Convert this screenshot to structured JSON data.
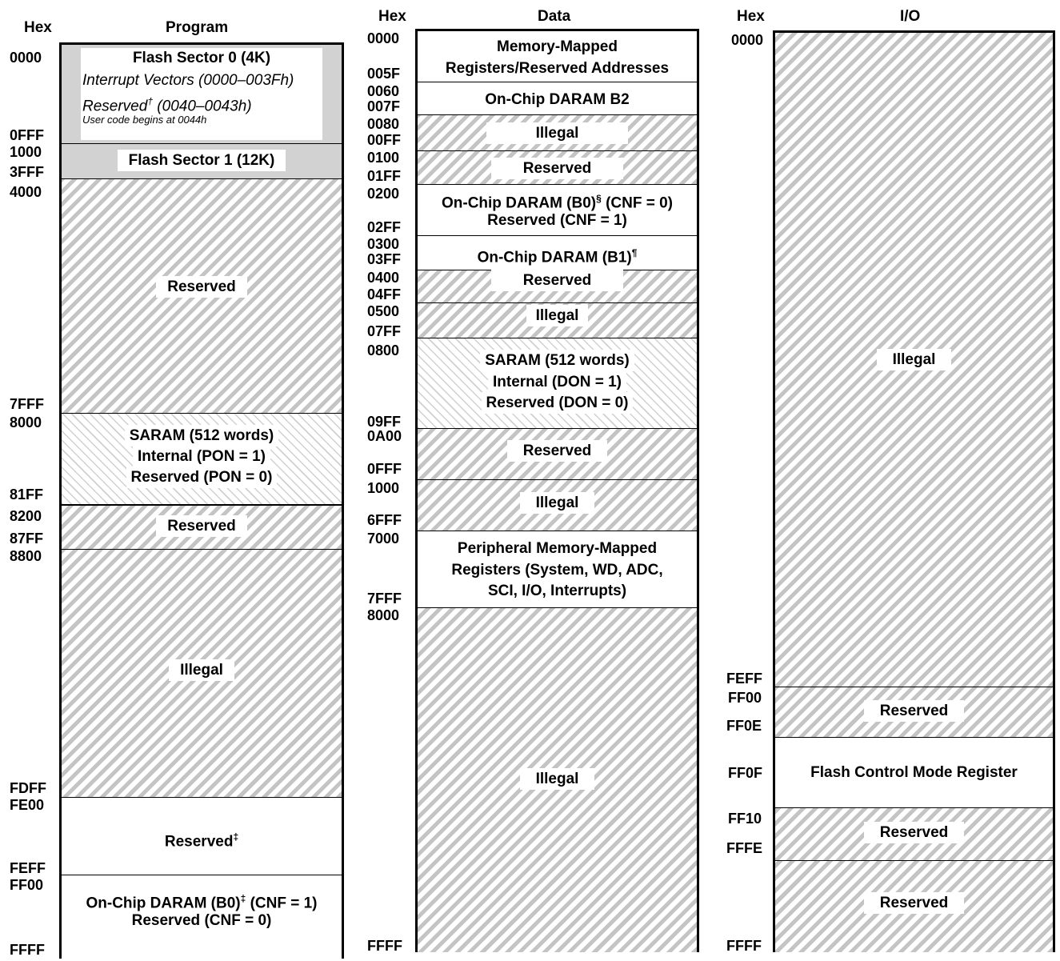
{
  "headers": {
    "program_hex": "Hex",
    "program": "Program",
    "data_hex": "Hex",
    "data": "Data",
    "io_hex": "Hex",
    "io": "I/O"
  },
  "program": {
    "addresses": [
      "0000",
      "0FFF",
      "1000",
      "3FFF",
      "4000",
      "7FFF",
      "8000",
      "81FF",
      "8200",
      "87FF",
      "8800",
      "FDFF",
      "FE00",
      "FEFF",
      "FF00",
      "FFFF"
    ],
    "flash0_title": "Flash Sector 0 (4K)",
    "flash0_line1": "Interrupt Vectors (0000–003Fh)",
    "flash0_line2a": "Reserved",
    "flash0_line2_sup": "†",
    "flash0_line2b": " (0040–0043h)",
    "flash0_line3": "User code begins at 0044h",
    "flash1": "Flash Sector 1 (12K)",
    "reserved1": "Reserved",
    "saram_1": "SARAM (512 words)",
    "saram_2": "Internal (PON = 1)",
    "saram_3": "Reserved (PON = 0)",
    "reserved2": "Reserved",
    "illegal": "Illegal",
    "reserved3": "Reserved",
    "reserved3_sup": "‡",
    "daram_1a": "On-Chip DARAM (B0)",
    "daram_1_sup": "‡",
    "daram_1b": " (CNF = 1)",
    "daram_2": "Reserved (CNF = 0)"
  },
  "data": {
    "addresses": [
      "0000",
      "005F",
      "0060",
      "007F",
      "0080",
      "00FF",
      "0100",
      "01FF",
      "0200",
      "02FF",
      "0300",
      "03FF",
      "0400",
      "04FF",
      "0500",
      "07FF",
      "0800",
      "09FF",
      "0A00",
      "0FFF",
      "1000",
      "6FFF",
      "7000",
      "7FFF",
      "8000",
      "FFFF"
    ],
    "mmr_1": "Memory-Mapped",
    "mmr_2": "Registers/Reserved Addresses",
    "b2": "On-Chip DARAM B2",
    "illegal1": "Illegal",
    "reserved1": "Reserved",
    "b0_1a": "On-Chip DARAM (B0)",
    "b0_1_sup": "§",
    "b0_1b": " (CNF = 0)",
    "b0_2": "Reserved (CNF = 1)",
    "b1a": "On-Chip DARAM (B1)",
    "b1_sup": "¶",
    "reserved2": "Reserved",
    "illegal2": "Illegal",
    "saram_1": "SARAM (512 words)",
    "saram_2": "Internal (DON = 1)",
    "saram_3": "Reserved (DON = 0)",
    "reserved3": "Reserved",
    "illegal3": "Illegal",
    "periph_1": "Peripheral Memory-Mapped",
    "periph_2": "Registers (System, WD, ADC,",
    "periph_3": "SCI, I/O, Interrupts)",
    "illegal4": "Illegal"
  },
  "io": {
    "addresses": [
      "0000",
      "FEFF",
      "FF00",
      "FF0E",
      "FF0F",
      "FF10",
      "FFFE",
      "FFFF"
    ],
    "illegal": "Illegal",
    "reserved1": "Reserved",
    "fcmr": "Flash Control Mode Register",
    "reserved2": "Reserved",
    "reserved3": "Reserved"
  }
}
